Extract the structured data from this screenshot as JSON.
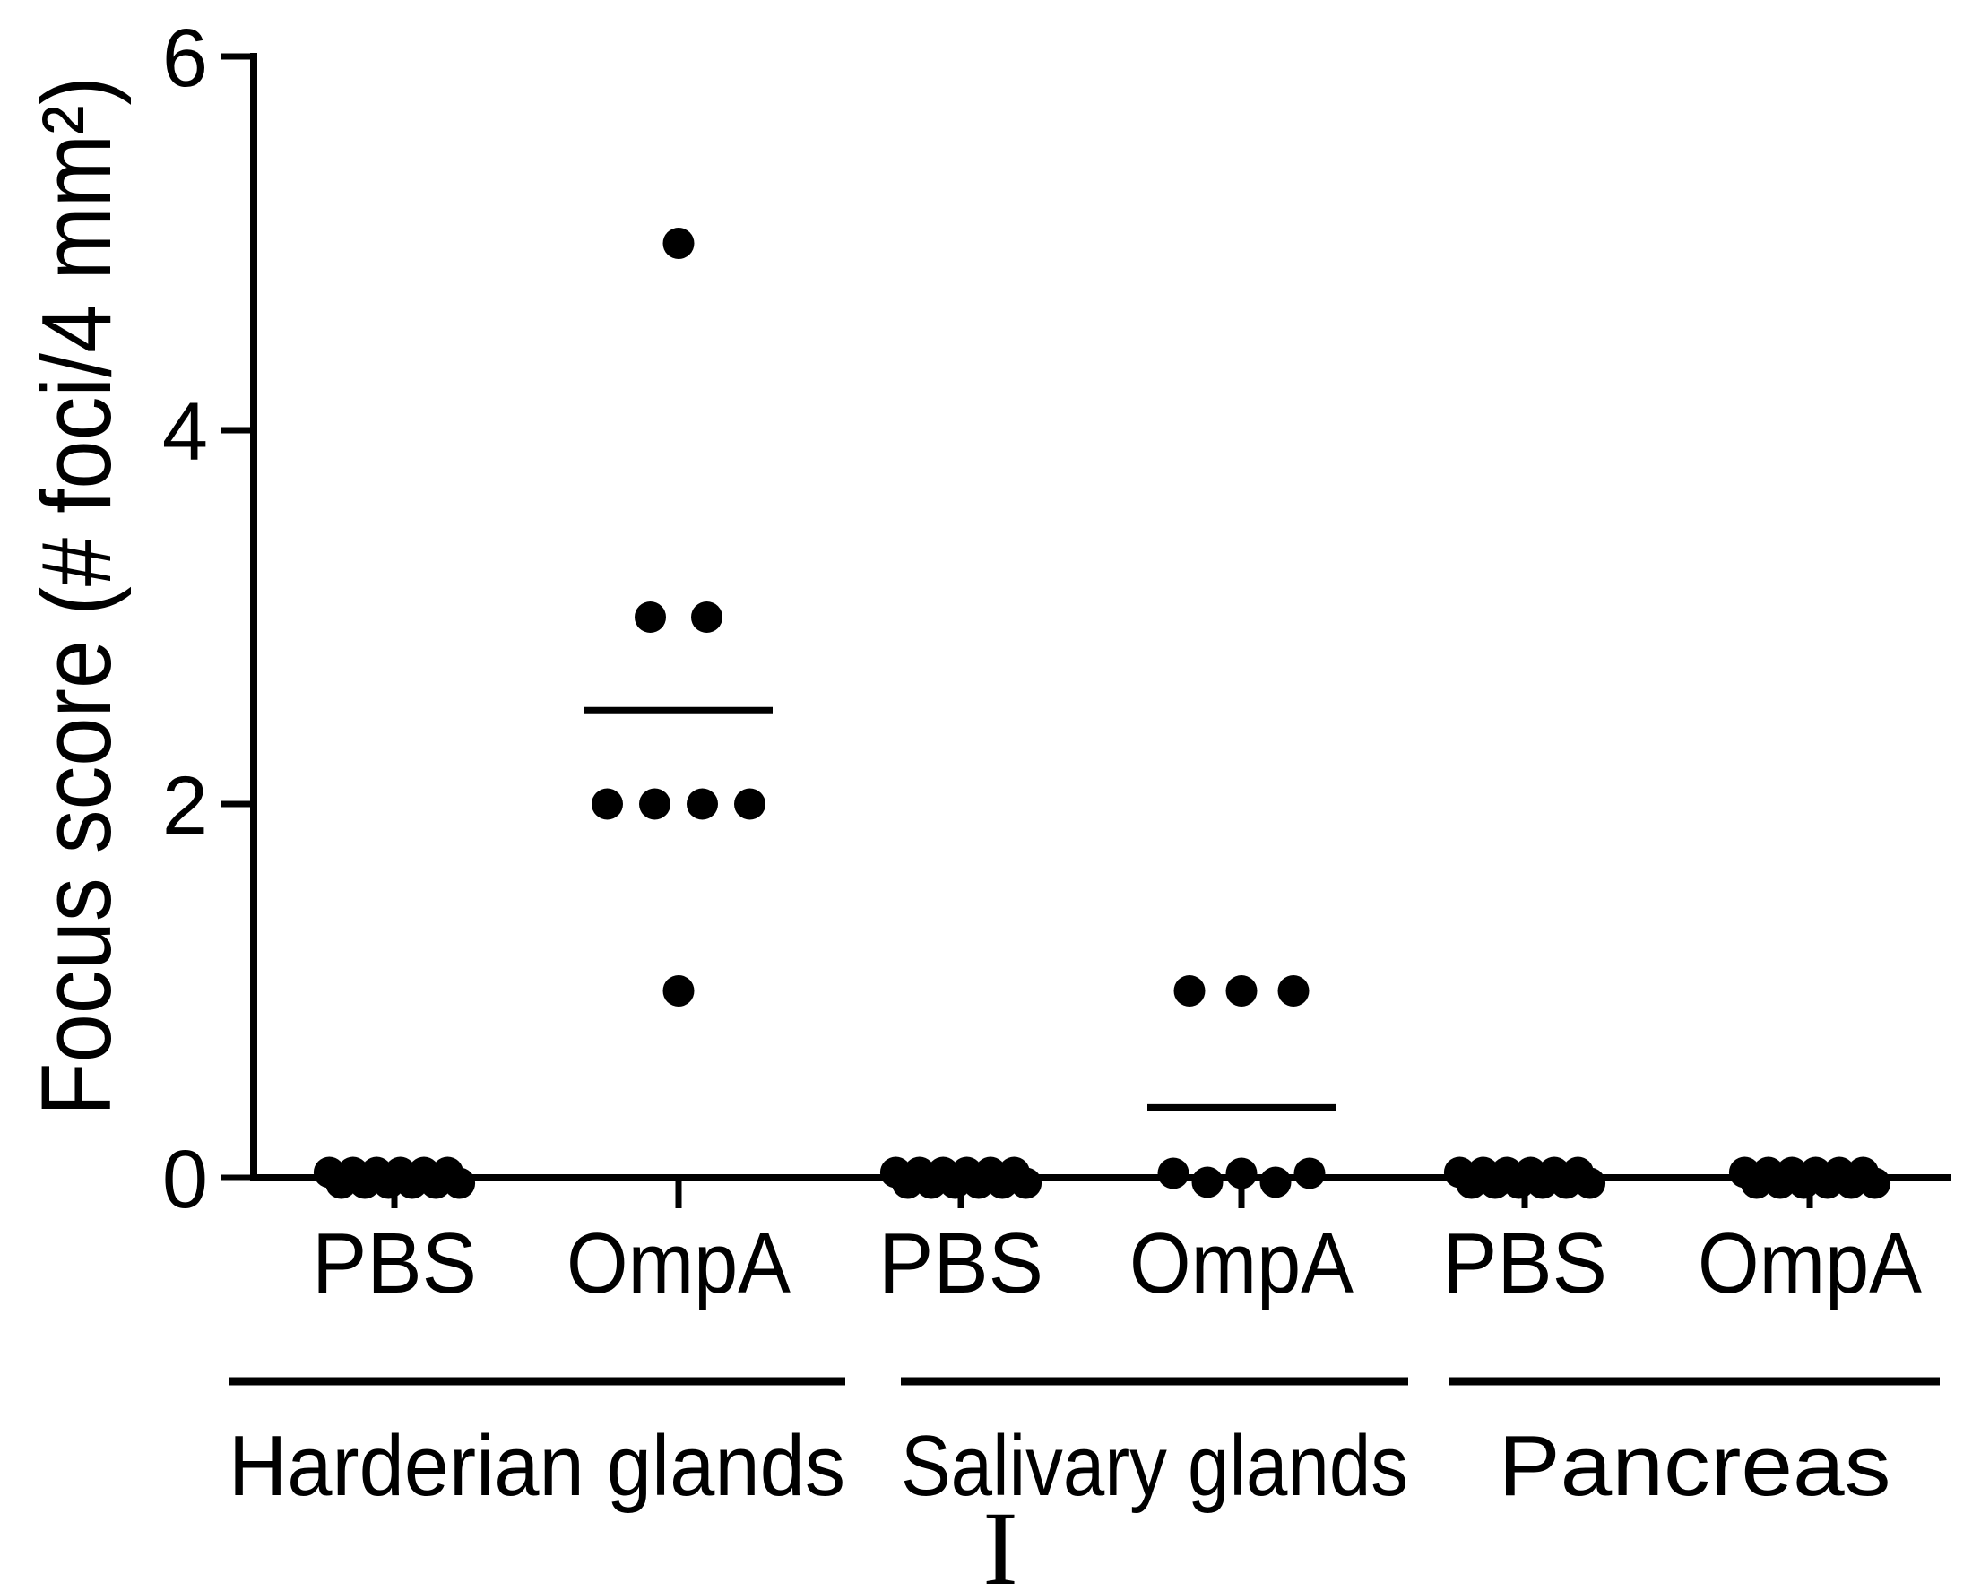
{
  "figure": {
    "panel_label": "I",
    "background_color": "#ffffff",
    "ink_color": "#000000"
  },
  "chart_data": {
    "type": "scatter",
    "subtype": "column-dot-plot",
    "title": "",
    "xlabel": "",
    "ylabel": "Focus score (# foci/4 mm²)",
    "ylim": [
      0,
      6
    ],
    "yticks": [
      "0",
      "2",
      "4",
      "6"
    ],
    "grid": false,
    "legend": "none",
    "marker": {
      "shape": "circle",
      "color": "#000000"
    },
    "summary_line": "mean",
    "tissue_groups": [
      {
        "label": "Harderian glands",
        "conditions": [
          {
            "label": "PBS",
            "values": [
              0,
              0,
              0,
              0,
              0,
              0,
              0,
              0,
              0,
              0,
              0,
              0
            ],
            "mean": 0
          },
          {
            "label": "OmpA",
            "values": [
              5,
              3,
              3,
              2,
              2,
              2,
              2,
              1
            ],
            "mean": 2.5
          }
        ]
      },
      {
        "label": "Salivary glands",
        "conditions": [
          {
            "label": "PBS",
            "values": [
              0,
              0,
              0,
              0,
              0,
              0,
              0,
              0,
              0,
              0,
              0,
              0
            ],
            "mean": 0
          },
          {
            "label": "OmpA",
            "values": [
              1,
              1,
              1,
              0,
              0,
              0,
              0,
              0
            ],
            "mean": 0.375
          }
        ]
      },
      {
        "label": "Pancreas",
        "conditions": [
          {
            "label": "PBS",
            "values": [
              0,
              0,
              0,
              0,
              0,
              0,
              0,
              0,
              0,
              0,
              0,
              0
            ],
            "mean": 0
          },
          {
            "label": "OmpA",
            "values": [
              0,
              0,
              0,
              0,
              0,
              0,
              0,
              0,
              0,
              0,
              0,
              0
            ],
            "mean": 0
          }
        ]
      }
    ]
  }
}
